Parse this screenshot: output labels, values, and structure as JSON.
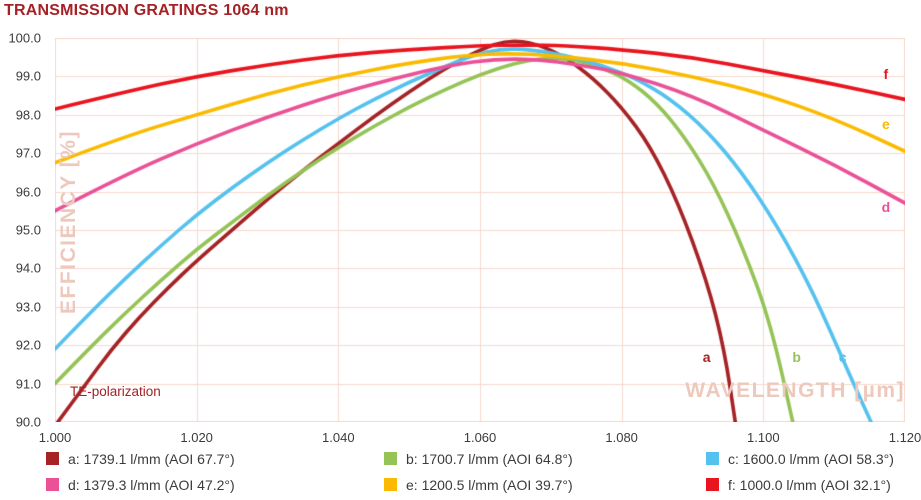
{
  "title": "TRANSMISSION GRATINGS 1064 nm",
  "colors": {
    "brand": "#a42125",
    "grid": "#f7d8cc",
    "watermark": "#edc9bd",
    "tick_text": "#3b3b3a"
  },
  "annotations": {
    "polarization": "TE-polarization",
    "x_watermark": "WAVELENGTH [µm]",
    "y_watermark": "EFFICIENCY [%]"
  },
  "legend": {
    "items": [
      {
        "key": "a",
        "label": "a: 1739.1 l/mm (AOI 67.7°)",
        "color": "#a52225"
      },
      {
        "key": "b",
        "label": "b: 1700.7 l/mm (AOI 64.8°)",
        "color": "#94c356"
      },
      {
        "key": "c",
        "label": "c: 1600.0 l/mm (AOI 58.3°)",
        "color": "#54c1ee"
      },
      {
        "key": "d",
        "label": "d: 1379.3 l/mm (AOI 47.2°)",
        "color": "#ea5197"
      },
      {
        "key": "e",
        "label": "e: 1200.5 l/mm (AOI 39.7°)",
        "color": "#fbba00"
      },
      {
        "key": "f",
        "label": "f: 1000.0 l/mm (AOI 32.1°)",
        "color": "#e8141e"
      }
    ]
  },
  "chart_data": {
    "type": "line",
    "title": "TRANSMISSION GRATINGS 1064 nm",
    "xlabel": "WAVELENGTH [µm]",
    "ylabel": "EFFICIENCY [%]",
    "xlim": [
      1.0,
      1.12
    ],
    "ylim": [
      90.0,
      100.0
    ],
    "grid": true,
    "grid_color": "#f7d8cc",
    "legend_position": "bottom",
    "x_ticks": [
      {
        "value": 1.0,
        "label": "1.000"
      },
      {
        "value": 1.02,
        "label": "1.020"
      },
      {
        "value": 1.04,
        "label": "1.040"
      },
      {
        "value": 1.06,
        "label": "1.060"
      },
      {
        "value": 1.08,
        "label": "1.080"
      },
      {
        "value": 1.1,
        "label": "1.100"
      },
      {
        "value": 1.12,
        "label": "1.120"
      }
    ],
    "y_ticks": [
      {
        "value": 100.0,
        "label": "100.0"
      },
      {
        "value": 99.0,
        "label": "99.0"
      },
      {
        "value": 98.0,
        "label": "98.0"
      },
      {
        "value": 97.0,
        "label": "97.0"
      },
      {
        "value": 96.0,
        "label": "96.0"
      },
      {
        "value": 95.0,
        "label": "95.0"
      },
      {
        "value": 94.0,
        "label": "94.0"
      },
      {
        "value": 93.0,
        "label": "93.0"
      },
      {
        "value": 92.0,
        "label": "92.0"
      },
      {
        "value": 91.0,
        "label": "91.0"
      },
      {
        "value": 90.0,
        "label": "90.0"
      }
    ],
    "series": [
      {
        "name": "a",
        "lines_per_mm": 1739.1,
        "aoi_deg": 67.7,
        "color": "#a52225",
        "label_pos": [
          1.092,
          91.7
        ],
        "points": [
          [
            1.0,
            89.9
          ],
          [
            1.004,
            90.9
          ],
          [
            1.008,
            91.9
          ],
          [
            1.012,
            92.75
          ],
          [
            1.016,
            93.5
          ],
          [
            1.02,
            94.2
          ],
          [
            1.025,
            95.0
          ],
          [
            1.03,
            95.8
          ],
          [
            1.035,
            96.55
          ],
          [
            1.04,
            97.25
          ],
          [
            1.045,
            97.95
          ],
          [
            1.05,
            98.6
          ],
          [
            1.055,
            99.2
          ],
          [
            1.06,
            99.7
          ],
          [
            1.064,
            99.95
          ],
          [
            1.068,
            99.85
          ],
          [
            1.072,
            99.5
          ],
          [
            1.076,
            98.95
          ],
          [
            1.08,
            98.2
          ],
          [
            1.084,
            97.2
          ],
          [
            1.088,
            95.7
          ],
          [
            1.092,
            93.7
          ],
          [
            1.0945,
            91.9
          ],
          [
            1.0962,
            89.8
          ]
        ]
      },
      {
        "name": "b",
        "lines_per_mm": 1700.7,
        "aoi_deg": 64.8,
        "color": "#94c356",
        "label_pos": [
          1.1047,
          91.7
        ],
        "points": [
          [
            1.0,
            91.0
          ],
          [
            1.005,
            91.95
          ],
          [
            1.01,
            92.85
          ],
          [
            1.015,
            93.7
          ],
          [
            1.02,
            94.5
          ],
          [
            1.025,
            95.2
          ],
          [
            1.03,
            95.9
          ],
          [
            1.035,
            96.55
          ],
          [
            1.04,
            97.15
          ],
          [
            1.045,
            97.7
          ],
          [
            1.05,
            98.2
          ],
          [
            1.055,
            98.65
          ],
          [
            1.06,
            99.05
          ],
          [
            1.065,
            99.35
          ],
          [
            1.069,
            99.48
          ],
          [
            1.073,
            99.45
          ],
          [
            1.077,
            99.25
          ],
          [
            1.081,
            98.9
          ],
          [
            1.085,
            98.3
          ],
          [
            1.089,
            97.4
          ],
          [
            1.093,
            96.2
          ],
          [
            1.097,
            94.6
          ],
          [
            1.101,
            92.6
          ],
          [
            1.1044,
            89.8
          ]
        ]
      },
      {
        "name": "c",
        "lines_per_mm": 1600.0,
        "aoi_deg": 58.3,
        "color": "#54c1ee",
        "label_pos": [
          1.1112,
          91.7
        ],
        "points": [
          [
            1.0,
            91.9
          ],
          [
            1.005,
            92.85
          ],
          [
            1.01,
            93.75
          ],
          [
            1.015,
            94.6
          ],
          [
            1.02,
            95.4
          ],
          [
            1.025,
            96.1
          ],
          [
            1.03,
            96.75
          ],
          [
            1.035,
            97.35
          ],
          [
            1.04,
            97.9
          ],
          [
            1.045,
            98.4
          ],
          [
            1.05,
            98.85
          ],
          [
            1.055,
            99.25
          ],
          [
            1.059,
            99.55
          ],
          [
            1.063,
            99.72
          ],
          [
            1.067,
            99.7
          ],
          [
            1.072,
            99.55
          ],
          [
            1.077,
            99.3
          ],
          [
            1.082,
            98.95
          ],
          [
            1.087,
            98.4
          ],
          [
            1.092,
            97.6
          ],
          [
            1.097,
            96.5
          ],
          [
            1.102,
            95.1
          ],
          [
            1.107,
            93.4
          ],
          [
            1.112,
            91.3
          ],
          [
            1.1157,
            89.8
          ]
        ]
      },
      {
        "name": "d",
        "lines_per_mm": 1379.3,
        "aoi_deg": 47.2,
        "color": "#ea5197",
        "label_pos": [
          1.1173,
          95.6
        ],
        "points": [
          [
            1.0,
            95.5
          ],
          [
            1.01,
            96.45
          ],
          [
            1.02,
            97.25
          ],
          [
            1.03,
            97.95
          ],
          [
            1.04,
            98.55
          ],
          [
            1.048,
            98.95
          ],
          [
            1.056,
            99.3
          ],
          [
            1.062,
            99.45
          ],
          [
            1.068,
            99.45
          ],
          [
            1.074,
            99.3
          ],
          [
            1.08,
            99.1
          ],
          [
            1.09,
            98.5
          ],
          [
            1.1,
            97.6
          ],
          [
            1.11,
            96.7
          ],
          [
            1.12,
            95.7
          ]
        ]
      },
      {
        "name": "e",
        "lines_per_mm": 1200.5,
        "aoi_deg": 39.7,
        "color": "#fbba00",
        "label_pos": [
          1.1173,
          97.75
        ],
        "points": [
          [
            1.0,
            96.75
          ],
          [
            1.01,
            97.45
          ],
          [
            1.02,
            98.0
          ],
          [
            1.03,
            98.55
          ],
          [
            1.04,
            99.0
          ],
          [
            1.05,
            99.35
          ],
          [
            1.058,
            99.55
          ],
          [
            1.064,
            99.6
          ],
          [
            1.07,
            99.55
          ],
          [
            1.08,
            99.35
          ],
          [
            1.09,
            99.0
          ],
          [
            1.1,
            98.55
          ],
          [
            1.11,
            97.9
          ],
          [
            1.12,
            97.05
          ]
        ]
      },
      {
        "name": "f",
        "lines_per_mm": 1000.0,
        "aoi_deg": 32.1,
        "color": "#e8141e",
        "label_pos": [
          1.1173,
          99.05
        ],
        "points": [
          [
            1.0,
            98.15
          ],
          [
            1.01,
            98.6
          ],
          [
            1.02,
            99.0
          ],
          [
            1.03,
            99.3
          ],
          [
            1.04,
            99.55
          ],
          [
            1.05,
            99.7
          ],
          [
            1.06,
            99.8
          ],
          [
            1.066,
            99.82
          ],
          [
            1.072,
            99.8
          ],
          [
            1.08,
            99.7
          ],
          [
            1.09,
            99.5
          ],
          [
            1.1,
            99.15
          ],
          [
            1.11,
            98.8
          ],
          [
            1.12,
            98.4
          ]
        ]
      }
    ]
  }
}
